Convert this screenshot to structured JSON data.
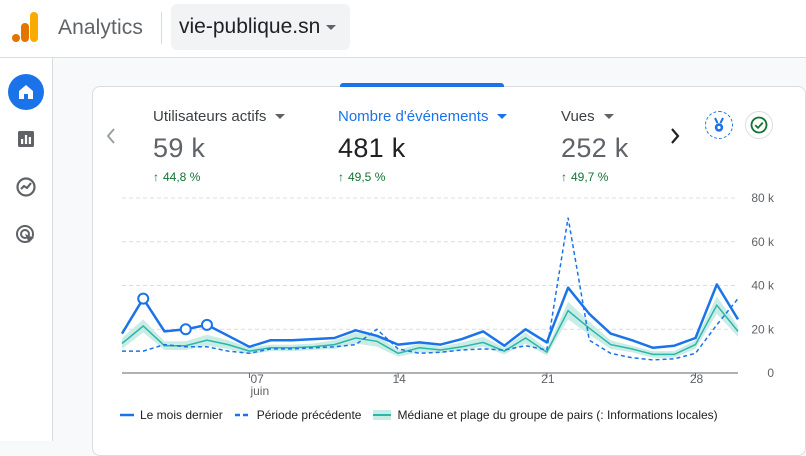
{
  "header": {
    "app_title": "Analytics",
    "property_name": "vie-publique.sn"
  },
  "sidebar": {
    "items": [
      {
        "name": "home-icon",
        "active": true
      },
      {
        "name": "reports-icon",
        "active": false
      },
      {
        "name": "explore-icon",
        "active": false
      },
      {
        "name": "advertising-icon",
        "active": false
      }
    ]
  },
  "metrics": [
    {
      "label": "Utilisateurs actifs",
      "value": "59 k",
      "change": "44,8 %",
      "active": false
    },
    {
      "label": "Nombre d'événements",
      "value": "481 k",
      "change": "49,5 %",
      "active": true
    },
    {
      "label": "Vues",
      "value": "252 k",
      "change": "49,7 %",
      "active": false
    }
  ],
  "colors": {
    "primary": "#1a73e8",
    "positive": "#137333",
    "benchmark": "#2bb6a6",
    "benchmark_fill": "#c9ece7"
  },
  "legend": {
    "current": "Le mois dernier",
    "previous": "Période précédente",
    "benchmark": "Médiane et plage du groupe de pairs (: Informations locales)"
  },
  "chart_data": {
    "type": "line",
    "x_start_day": 1,
    "x_tick_labels": [
      {
        "day": 7,
        "label": "07",
        "sublabel": "juin"
      },
      {
        "day": 14,
        "label": "14",
        "sublabel": ""
      },
      {
        "day": 21,
        "label": "21",
        "sublabel": ""
      },
      {
        "day": 28,
        "label": "28",
        "sublabel": ""
      }
    ],
    "y_ticks": [
      {
        "value": 0,
        "label": "0"
      },
      {
        "value": 20000,
        "label": "20 k"
      },
      {
        "value": 40000,
        "label": "40 k"
      },
      {
        "value": 60000,
        "label": "60 k"
      },
      {
        "value": 80000,
        "label": "80 k"
      }
    ],
    "ylim": [
      0,
      80000
    ],
    "grid": true,
    "legend_position": "bottom",
    "series": [
      {
        "name": "Le mois dernier",
        "style": "solid",
        "values": [
          18000,
          34000,
          19000,
          20000,
          22000,
          17000,
          12000,
          15000,
          15000,
          15500,
          16000,
          19500,
          17000,
          13000,
          14000,
          13000,
          15500,
          19000,
          12500,
          20000,
          14000,
          39000,
          27000,
          18000,
          15000,
          11500,
          12500,
          16000,
          40500,
          24500
        ],
        "markers": [
          {
            "day": 2,
            "value": 34000
          },
          {
            "day": 4,
            "value": 20000
          },
          {
            "day": 5,
            "value": 22000
          }
        ]
      },
      {
        "name": "Période précédente",
        "style": "dashed",
        "values": [
          10000,
          10000,
          13000,
          12000,
          12000,
          10000,
          9000,
          11000,
          11000,
          11500,
          12000,
          13000,
          20000,
          11000,
          9000,
          9500,
          10500,
          11000,
          10500,
          12500,
          10500,
          71000,
          15000,
          9000,
          7000,
          6000,
          6500,
          9000,
          22000,
          34000
        ]
      },
      {
        "name": "Médiane et plage du groupe de pairs (: Informations locales)",
        "style": "band",
        "median": [
          13500,
          21500,
          12500,
          12500,
          15000,
          13000,
          10000,
          11500,
          11500,
          12000,
          13000,
          16000,
          14500,
          9000,
          11500,
          10500,
          12000,
          14000,
          10000,
          16000,
          9500,
          28500,
          20500,
          13000,
          11000,
          8500,
          8500,
          13000,
          31000,
          19000
        ],
        "lower": [
          11000,
          18500,
          10500,
          10500,
          12500,
          11000,
          8500,
          10000,
          10000,
          10500,
          11000,
          13500,
          12000,
          7500,
          9500,
          9000,
          10500,
          12000,
          8500,
          13500,
          8000,
          24500,
          17500,
          11000,
          9500,
          7000,
          7000,
          11000,
          27000,
          16500
        ],
        "upper": [
          16000,
          24500,
          14500,
          14500,
          17500,
          15000,
          11500,
          13000,
          13000,
          13500,
          15000,
          18500,
          17000,
          10500,
          13500,
          12000,
          14000,
          16500,
          11500,
          18500,
          11000,
          32500,
          23500,
          15000,
          12500,
          10000,
          10000,
          15000,
          35000,
          21500
        ]
      }
    ]
  }
}
